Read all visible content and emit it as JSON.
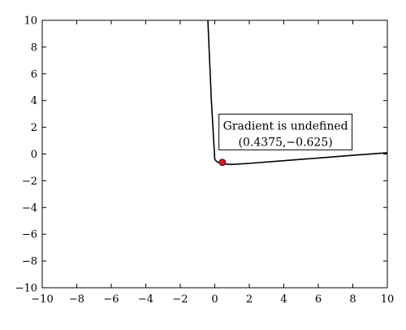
{
  "chart_data": {
    "type": "line",
    "title": "",
    "xlabel": "",
    "ylabel": "",
    "xlim": [
      -10,
      10
    ],
    "ylim": [
      -10,
      10
    ],
    "x_ticks": [
      -10,
      -8,
      -6,
      -4,
      -2,
      0,
      2,
      4,
      6,
      8,
      10
    ],
    "y_ticks": [
      -10,
      -8,
      -6,
      -4,
      -2,
      0,
      2,
      4,
      6,
      8,
      10
    ],
    "x_tick_labels": [
      "−10",
      "−8",
      "−6",
      "−4",
      "−2",
      "0",
      "2",
      "4",
      "6",
      "8",
      "10"
    ],
    "y_tick_labels": [
      "−10",
      "−8",
      "−6",
      "−4",
      "−2",
      "0",
      "2",
      "4",
      "6",
      "8",
      "10"
    ],
    "grid": false,
    "series": [
      {
        "color": "#000000",
        "x": [
          -0.4,
          -0.2,
          0.0,
          0.1,
          0.15,
          0.2,
          0.3,
          0.4375,
          0.6,
          1.0,
          2.0,
          4.0,
          6.0,
          8.0,
          10.0
        ],
        "y": [
          10.0,
          4.0,
          -0.4,
          -0.55,
          -0.6,
          -0.62,
          -0.62,
          -0.625,
          -0.75,
          -0.78,
          -0.7,
          -0.5,
          -0.3,
          -0.1,
          0.1
        ]
      }
    ],
    "points": [
      {
        "x": 0.4375,
        "y": -0.625,
        "color": "#e8141b"
      }
    ],
    "annotation": {
      "line1": "Gradient is undefined",
      "line2": "(0.4375,−0.625)",
      "anchor_x": 4.1,
      "anchor_y": 1.65
    }
  }
}
